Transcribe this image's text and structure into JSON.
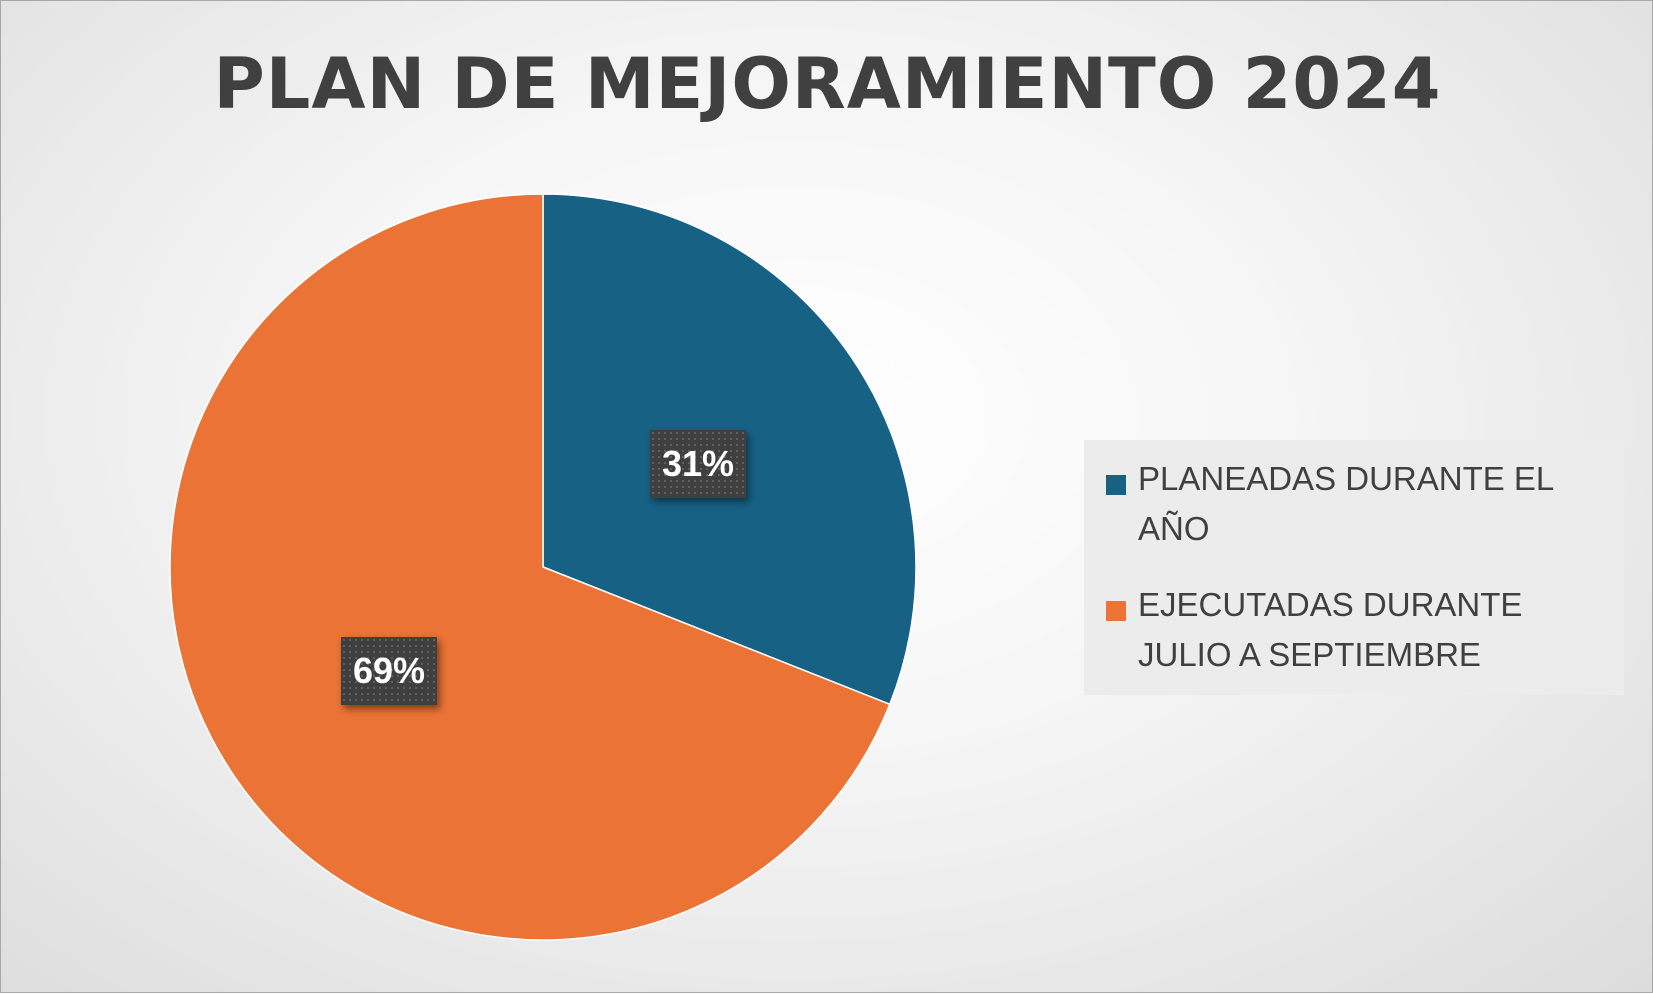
{
  "chart_data": {
    "type": "pie",
    "title": "PLAN DE MEJORAMIENTO 2024",
    "categories": [
      "PLANEADAS DURANTE EL AÑO",
      "EJECUTADAS DURANTE JULIO A SEPTIEMBRE"
    ],
    "values": [
      31,
      69
    ],
    "data_labels": [
      "31%",
      "69%"
    ],
    "colors": [
      "#176185",
      "#ea7335"
    ],
    "legend_position": "right"
  }
}
